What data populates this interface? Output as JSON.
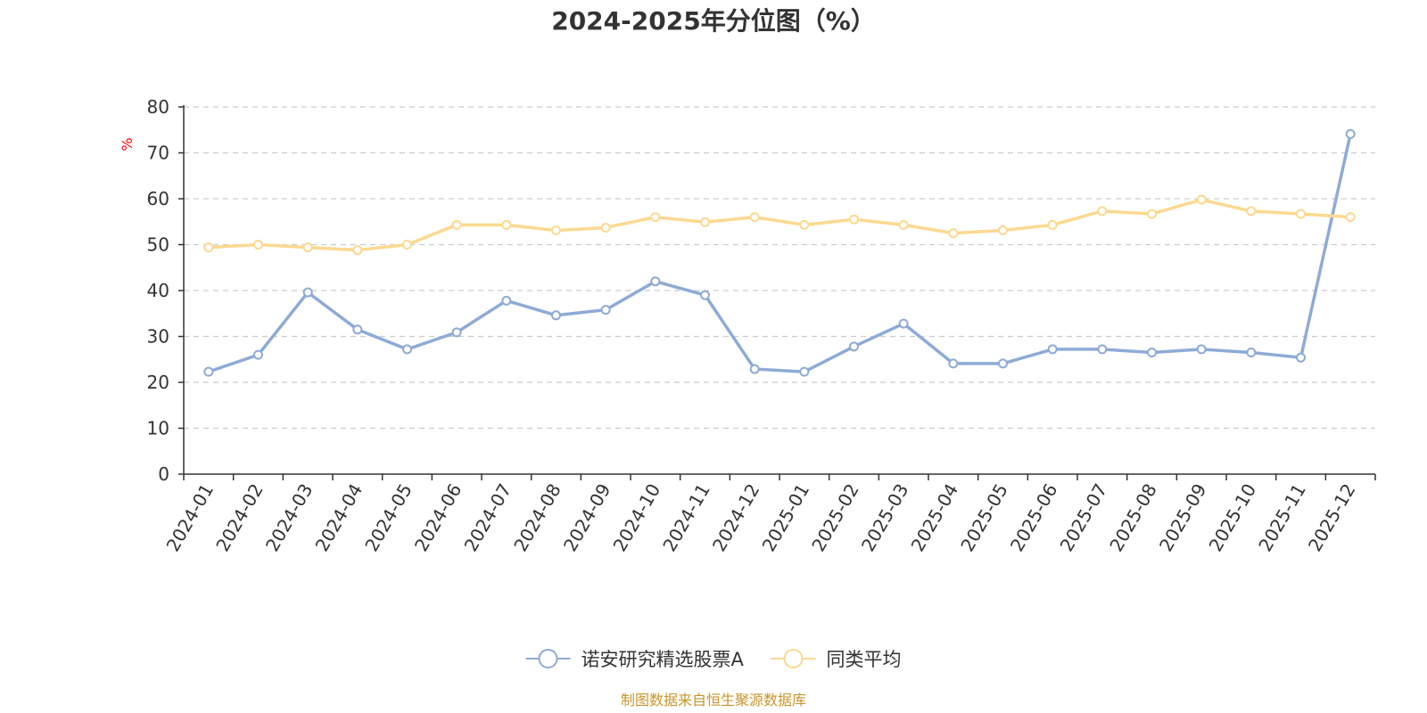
{
  "chart_data": {
    "type": "line",
    "title": "2024-2025年分位图（%）",
    "xlabel": "",
    "ylabel": "%",
    "ylim": [
      0,
      80
    ],
    "yticks": [
      0,
      10,
      20,
      30,
      40,
      50,
      60,
      70,
      80
    ],
    "grid": true,
    "legend_position": "bottom",
    "categories": [
      "2024-01",
      "2024-02",
      "2024-03",
      "2024-04",
      "2024-05",
      "2024-06",
      "2024-07",
      "2024-08",
      "2024-09",
      "2024-10",
      "2024-11",
      "2024-12",
      "2025-01",
      "2025-02",
      "2025-03",
      "2025-04",
      "2025-05",
      "2025-06",
      "2025-07",
      "2025-08",
      "2025-09",
      "2025-10",
      "2025-11",
      "2025-12"
    ],
    "series": [
      {
        "name": "诺安研究精选股票A",
        "color": "#8eabd6",
        "values": [
          22.3,
          26.0,
          39.6,
          31.5,
          27.2,
          30.9,
          37.8,
          34.6,
          35.8,
          42.0,
          39.0,
          22.9,
          22.3,
          27.8,
          32.8,
          24.1,
          24.1,
          27.2,
          27.2,
          26.5,
          27.2,
          26.5,
          25.4,
          74.1
        ]
      },
      {
        "name": "同类平均",
        "color": "#fcd990",
        "values": [
          49.4,
          50.0,
          49.4,
          48.8,
          50.0,
          54.3,
          54.3,
          53.1,
          53.7,
          56.0,
          54.9,
          56.0,
          54.3,
          55.5,
          54.3,
          52.5,
          53.1,
          54.3,
          57.3,
          56.7,
          59.8,
          57.3,
          56.7,
          56.0
        ]
      }
    ]
  },
  "footer": {
    "source": "制图数据来自恒生聚源数据库",
    "source_color": "#c8962c"
  },
  "ylabel_color": "#ff0000"
}
